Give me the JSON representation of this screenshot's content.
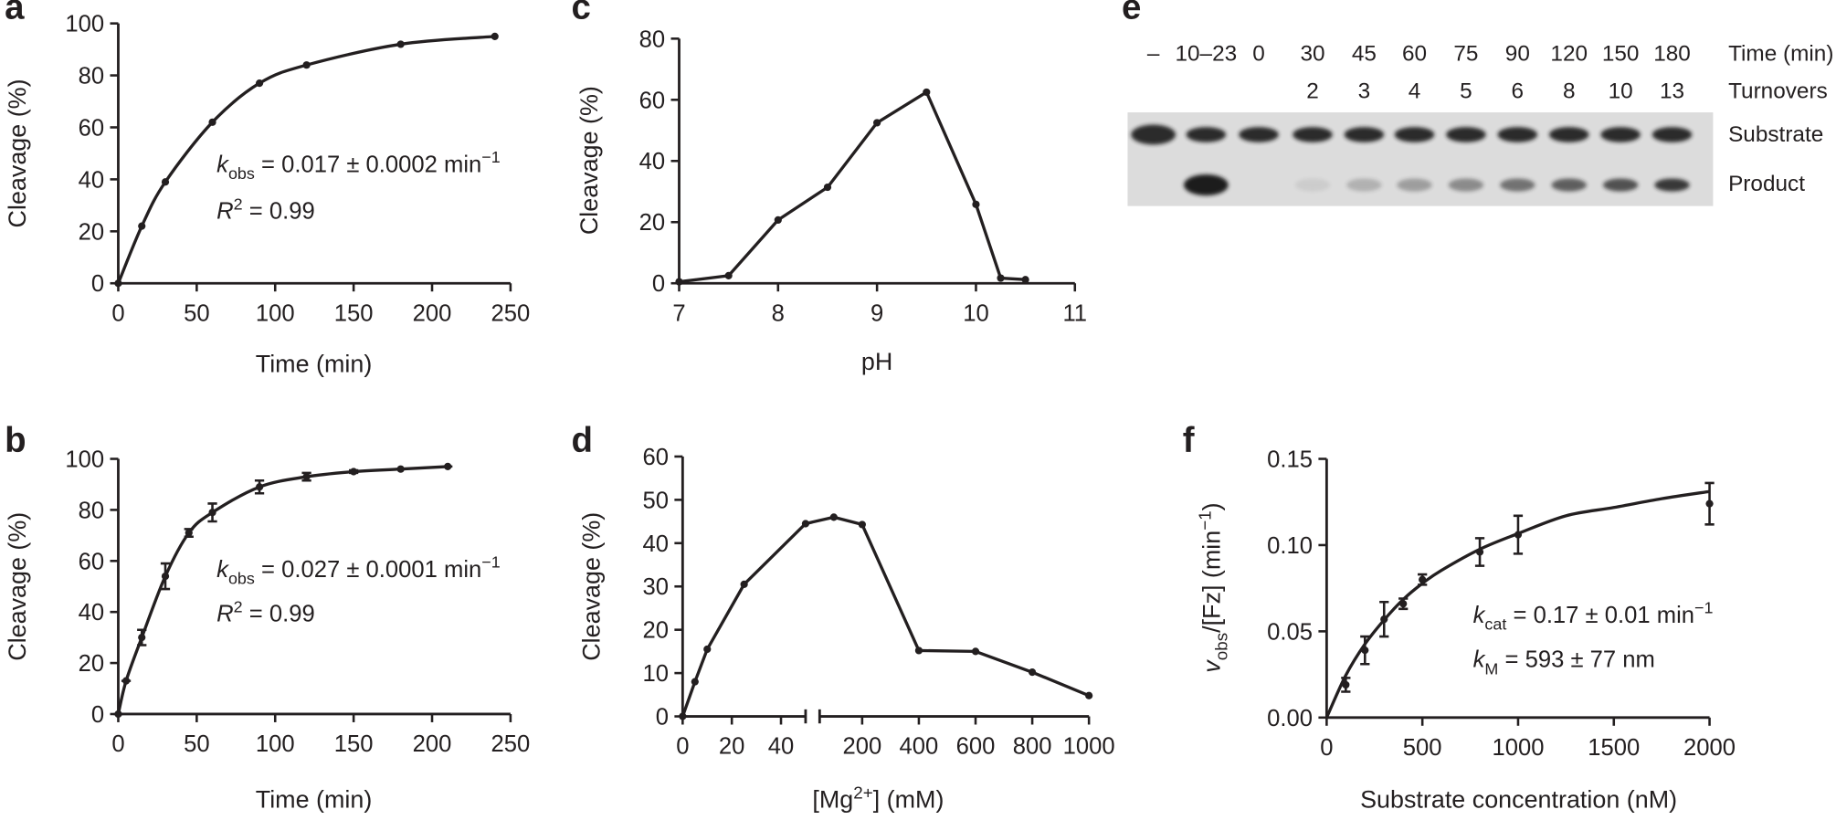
{
  "chart_data": [
    {
      "label": "a",
      "type": "line",
      "xlabel": "Time (min)",
      "ylabel": "Cleavage (%)",
      "xlim": [
        0,
        250
      ],
      "xticks": [
        0,
        50,
        100,
        150,
        200,
        250
      ],
      "ylim": [
        0,
        100
      ],
      "yticks": [
        0,
        20,
        40,
        60,
        80,
        100
      ],
      "series": [
        {
          "color": "#231f20",
          "curve": "smooth",
          "markers": true,
          "x": [
            0,
            15,
            30,
            60,
            90,
            120,
            180,
            240
          ],
          "values": [
            0,
            22,
            39,
            62,
            77,
            84,
            92,
            95
          ]
        }
      ],
      "annotations": [
        [
          {
            "text": "k",
            "italic": true
          },
          {
            "text": "obs",
            "shift": "sub"
          },
          {
            "text": " = 0.017 ± 0.0002 min"
          },
          {
            "text": "−1",
            "shift": "sup"
          }
        ],
        [
          {
            "text": "R",
            "italic": true
          },
          {
            "text": "2",
            "shift": "sup"
          },
          {
            "text": " = 0.99"
          }
        ]
      ]
    },
    {
      "label": "b",
      "type": "line",
      "xlabel": "Time (min)",
      "ylabel": "Cleavage (%)",
      "xlim": [
        0,
        250
      ],
      "xticks": [
        0,
        50,
        100,
        150,
        200,
        250
      ],
      "ylim": [
        0,
        100
      ],
      "yticks": [
        0,
        20,
        40,
        60,
        80,
        100
      ],
      "series": [
        {
          "color": "#231f20",
          "curve": "smooth",
          "markers": true,
          "x": [
            0,
            5,
            15,
            30,
            45,
            60,
            90,
            120,
            150,
            180,
            210
          ],
          "values": [
            0,
            13,
            30,
            54,
            71,
            79,
            89,
            93,
            95,
            96,
            97
          ],
          "errors": [
            0,
            0,
            3,
            5,
            1.5,
            3.5,
            2.5,
            1.5,
            0.5,
            0,
            0
          ]
        }
      ],
      "annotations": [
        [
          {
            "text": "k",
            "italic": true
          },
          {
            "text": "obs",
            "shift": "sub"
          },
          {
            "text": " = 0.027 ± 0.0001 min"
          },
          {
            "text": "−1",
            "shift": "sup"
          }
        ],
        [
          {
            "text": "R",
            "italic": true
          },
          {
            "text": "2",
            "shift": "sup"
          },
          {
            "text": " = 0.99"
          }
        ]
      ]
    },
    {
      "label": "c",
      "type": "line",
      "xlabel": "pH",
      "ylabel": "Cleavage (%)",
      "xlim": [
        7,
        11
      ],
      "xticks": [
        7,
        8,
        9,
        10,
        11
      ],
      "ylim": [
        0,
        80
      ],
      "yticks": [
        0,
        20,
        40,
        60,
        80
      ],
      "series": [
        {
          "color": "#231f20",
          "curve": "straight",
          "markers": true,
          "x": [
            7,
            7.5,
            8,
            8.5,
            9,
            9.5,
            10,
            10.25,
            10.5
          ],
          "values": [
            0.5,
            2.5,
            20.7,
            31.4,
            52.5,
            62.5,
            25.8,
            1.7,
            1.2
          ]
        }
      ]
    },
    {
      "label": "d",
      "type": "line",
      "xlabel": [
        {
          "text": "[Mg"
        },
        {
          "text": "2+",
          "shift": "sup"
        },
        {
          "text": "] (mM)"
        }
      ],
      "ylabel": "Cleavage (%)",
      "xaxis_segments": [
        {
          "xlim": [
            0,
            50
          ],
          "xticks": [
            0,
            20,
            40
          ]
        },
        {
          "xlim": [
            50,
            1000
          ],
          "xticks": [
            200,
            400,
            600,
            800,
            1000
          ]
        }
      ],
      "ylim": [
        0,
        60
      ],
      "yticks": [
        0,
        10,
        20,
        30,
        40,
        50,
        60
      ],
      "series": [
        {
          "color": "#231f20",
          "curve": "straight",
          "markers": true,
          "x": [
            0,
            5,
            10,
            25,
            50,
            100,
            200,
            400,
            600,
            800,
            1000
          ],
          "values": [
            0,
            8,
            15.5,
            30.5,
            44.5,
            46,
            44.3,
            15.2,
            15,
            10.2,
            4.8
          ]
        }
      ]
    },
    {
      "label": "f",
      "type": "line",
      "xlabel": "Substrate concentration (nM)",
      "ylabel": [
        {
          "text": "v",
          "italic": true
        },
        {
          "text": "obs",
          "shift": "sub"
        },
        {
          "text": "/[Fz] (min"
        },
        {
          "text": "−1",
          "shift": "sup"
        },
        {
          "text": ")"
        }
      ],
      "xlim": [
        0,
        2000
      ],
      "xticks": [
        0,
        500,
        1000,
        1500,
        2000
      ],
      "ylim": [
        0,
        0.15
      ],
      "yticks": [
        {
          "value": 0,
          "label": "0.00"
        },
        {
          "value": 0.05,
          "label": "0.05"
        },
        {
          "value": 0.1,
          "label": "0.10"
        },
        {
          "value": 0.15,
          "label": "0.15"
        }
      ],
      "series": [
        {
          "color": "#231f20",
          "curve": "none",
          "markers": true,
          "x": [
            100,
            200,
            300,
            400,
            500,
            800,
            1000,
            2000
          ],
          "values": [
            0.019,
            0.039,
            0.057,
            0.066,
            0.08,
            0.096,
            0.106,
            0.124
          ],
          "errors": [
            0.004,
            0.008,
            0.01,
            0.003,
            0.003,
            0.008,
            0.011,
            0.012
          ]
        },
        {
          "color": "#231f20",
          "curve": "smooth",
          "markers": false,
          "x": [
            0,
            100,
            200,
            300,
            400,
            500,
            600,
            800,
            1000,
            1250,
            1500,
            1750,
            2000
          ],
          "values": [
            0,
            0.0245,
            0.0426,
            0.0566,
            0.0685,
            0.0778,
            0.0854,
            0.0976,
            0.1067,
            0.117,
            0.1218,
            0.1269,
            0.1311
          ]
        }
      ],
      "annotations": [
        [
          {
            "text": "k",
            "italic": true
          },
          {
            "text": "cat",
            "shift": "sub"
          },
          {
            "text": " = 0.17 ± 0.01 min"
          },
          {
            "text": "−1",
            "shift": "sup"
          }
        ],
        [
          {
            "text": "k",
            "italic": true
          },
          {
            "text": "M",
            "shift": "sub"
          },
          {
            "text": " = 593 ± 77 nm"
          }
        ]
      ]
    }
  ],
  "gel": {
    "label": "e",
    "time_header": "Time (min)",
    "turnovers_header": "Turnovers",
    "band_labels": [
      "Substrate",
      "Product"
    ],
    "lanes": [
      {
        "time": "–"
      },
      {
        "time": "10–23"
      },
      {
        "time": 0
      },
      {
        "time": 30,
        "turnovers": 2
      },
      {
        "time": 45,
        "turnovers": 3
      },
      {
        "time": 60,
        "turnovers": 4
      },
      {
        "time": 75,
        "turnovers": 5
      },
      {
        "time": 90,
        "turnovers": 6
      },
      {
        "time": 120,
        "turnovers": 8
      },
      {
        "time": 150,
        "turnovers": 10
      },
      {
        "time": 180,
        "turnovers": 13
      }
    ]
  }
}
